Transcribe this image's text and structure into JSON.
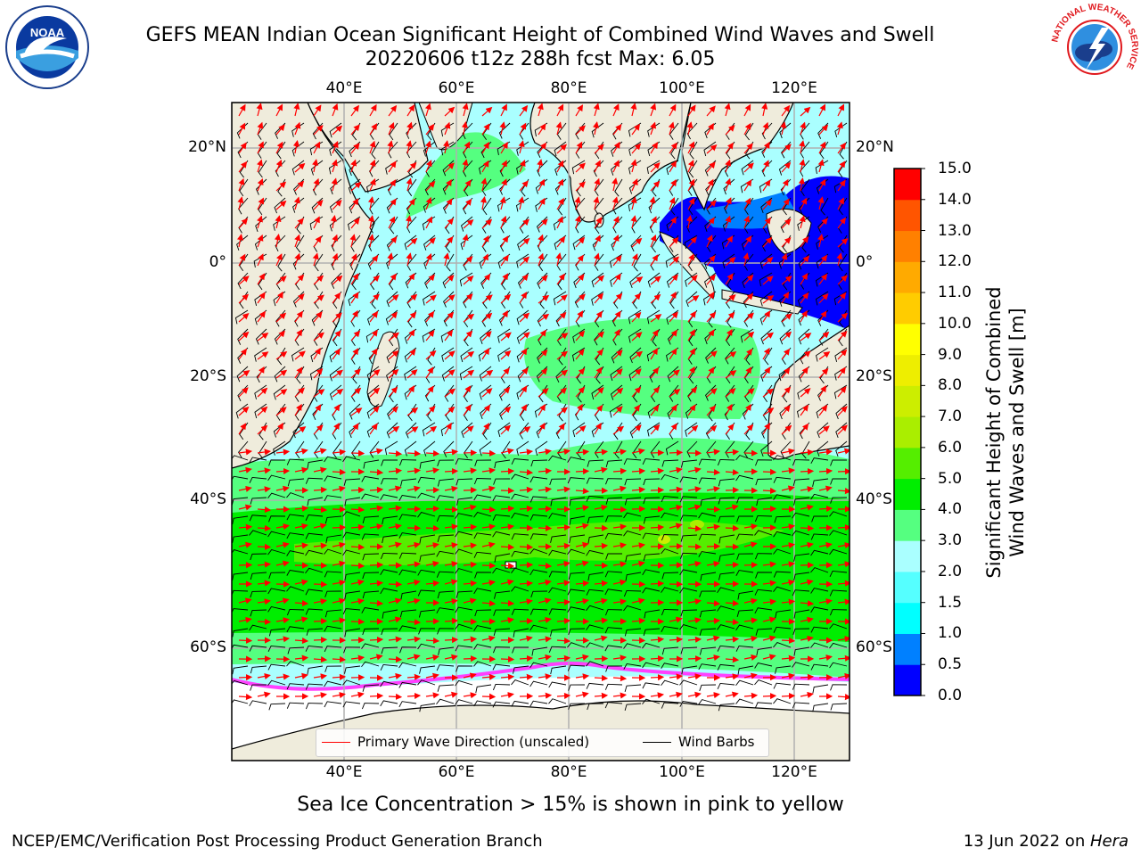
{
  "header": {
    "title_line1": "GEFS MEAN Indian Ocean Significant Height of Combined Wind Waves and Swell",
    "title_line2": "20220606 t12z 288h fcst   Max: 6.05"
  },
  "logos": {
    "left": "noaa-logo",
    "right": "national-weather-service-logo",
    "left_text": "NOAA",
    "right_text": "NATIONAL WEATHER SERVICE"
  },
  "map": {
    "lon_labels": [
      "40°E",
      "60°E",
      "80°E",
      "100°E",
      "120°E"
    ],
    "lat_labels": [
      "20°N",
      "0°",
      "20°S",
      "40°S",
      "60°S"
    ],
    "colors": {
      "land": "#efecdc",
      "ice": "#ffffff",
      "ocean_low": "#aaffff",
      "ocean_high": "#26ff26",
      "arrow": "#ff0000",
      "barb": "#000000"
    }
  },
  "colorbar": {
    "label_line1": "Significant Height of Combined",
    "label_line2": "Wind Waves and Swell [m]",
    "ticks": [
      "0.0",
      "0.5",
      "1.0",
      "1.5",
      "2.0",
      "3.0",
      "4.0",
      "5.0",
      "6.0",
      "7.0",
      "8.0",
      "9.0",
      "10.0",
      "11.0",
      "12.0",
      "13.0",
      "14.0",
      "15.0"
    ],
    "colors": [
      "#0000ff",
      "#0080ff",
      "#00ffff",
      "#55ffff",
      "#aaffff",
      "#55ff80",
      "#00ee00",
      "#55ee00",
      "#aaee00",
      "#ccee00",
      "#eeee00",
      "#ffff00",
      "#ffcc00",
      "#ffaa00",
      "#ff8000",
      "#ff5500",
      "#ff0000"
    ]
  },
  "legend": {
    "wave_label": "Primary Wave Direction (unscaled)",
    "barb_label": "Wind Barbs"
  },
  "footer": {
    "note": "Sea Ice Concentration > 15% is shown in pink to yellow",
    "credit": "NCEP/EMC/Verification Post Processing Product Generation Branch",
    "date_prefix": "13 Jun 2022 on ",
    "machine": "Hera"
  }
}
